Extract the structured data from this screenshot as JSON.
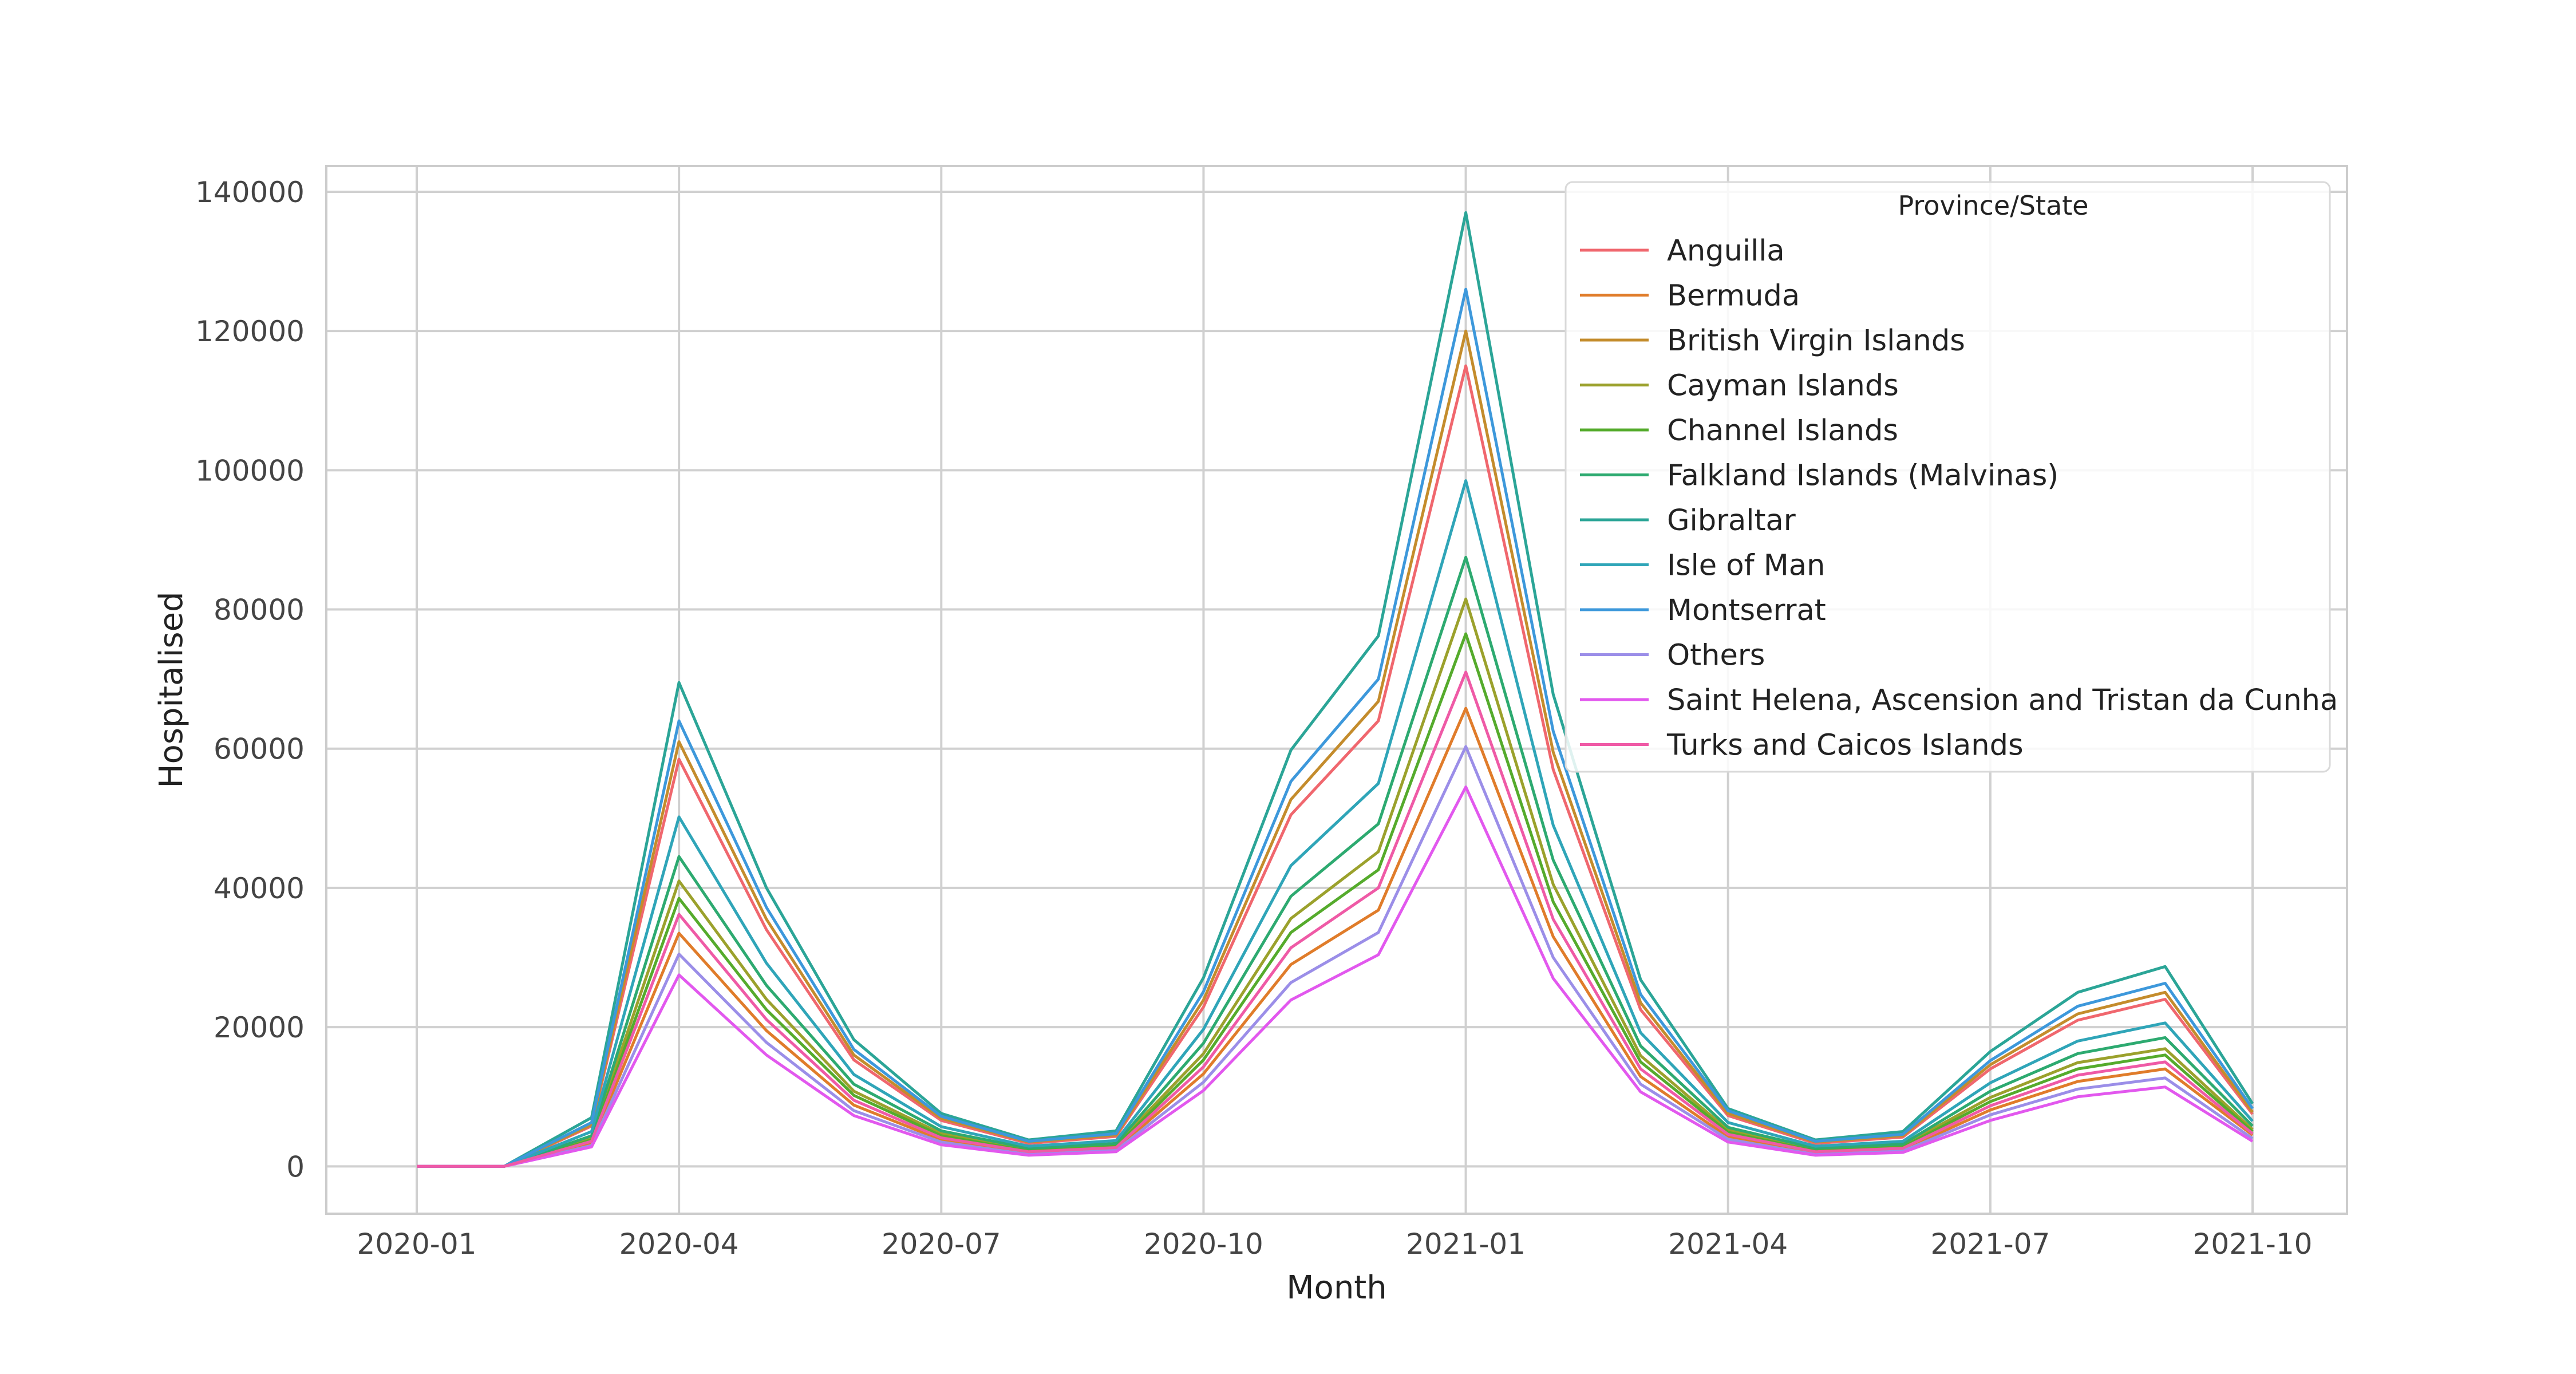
{
  "chart_data": {
    "type": "line",
    "title": "",
    "xlabel": "Month",
    "ylabel": "Hospitalised",
    "x": [
      "2020-01",
      "2020-02",
      "2020-03",
      "2020-04",
      "2020-05",
      "2020-06",
      "2020-07",
      "2020-08",
      "2020-09",
      "2020-10",
      "2020-11",
      "2020-12",
      "2021-01",
      "2021-02",
      "2021-03",
      "2021-04",
      "2021-05",
      "2021-06",
      "2021-07",
      "2021-08",
      "2021-09",
      "2021-10"
    ],
    "x_ticks": [
      "2020-01",
      "2020-04",
      "2020-07",
      "2020-10",
      "2021-01",
      "2021-04",
      "2021-07",
      "2021-10"
    ],
    "y_ticks": [
      0,
      20000,
      40000,
      60000,
      80000,
      100000,
      120000,
      140000
    ],
    "y_tick_labels": [
      "0",
      "20000",
      "40000",
      "60000",
      "80000",
      "100000",
      "120000",
      "140000"
    ],
    "ylim": [
      -6800,
      143700
    ],
    "grid": true,
    "legend_title": "Province/State",
    "legend_position": "top-right",
    "series": [
      {
        "name": "Anguilla",
        "color": "#f0676e",
        "values": [
          0,
          0,
          5800,
          58500,
          34000,
          15300,
          6600,
          3300,
          4300,
          22900,
          50500,
          64000,
          115000,
          57000,
          22500,
          7300,
          3300,
          4200,
          14000,
          21000,
          24000,
          7500
        ]
      },
      {
        "name": "Bermuda",
        "color": "#e07c2a",
        "values": [
          0,
          0,
          3300,
          33500,
          19500,
          8800,
          3800,
          1900,
          2500,
          13300,
          29000,
          36800,
          65800,
          33000,
          12900,
          4200,
          1900,
          2400,
          8100,
          12200,
          14000,
          4500
        ]
      },
      {
        "name": "British Virgin Islands",
        "color": "#c48c2c",
        "values": [
          0,
          0,
          6000,
          61000,
          35500,
          16000,
          6900,
          3500,
          4500,
          23900,
          52700,
          66800,
          120000,
          59500,
          23500,
          7600,
          3500,
          4400,
          14600,
          21900,
          25000,
          7800
        ]
      },
      {
        "name": "Cayman Islands",
        "color": "#9ba12c",
        "values": [
          0,
          0,
          4100,
          41000,
          24000,
          10800,
          4700,
          2300,
          3100,
          16200,
          35600,
          45200,
          81500,
          40500,
          15900,
          5200,
          2300,
          3000,
          9900,
          14900,
          16900,
          5300
        ]
      },
      {
        "name": "Channel Islands",
        "color": "#55ab2c",
        "values": [
          0,
          0,
          3800,
          38500,
          22500,
          10200,
          4400,
          2200,
          2900,
          15300,
          33600,
          42600,
          76500,
          38000,
          15000,
          4900,
          2200,
          2800,
          9300,
          14000,
          16000,
          5000
        ]
      },
      {
        "name": "Falkland Islands (Malvinas)",
        "color": "#2daa70",
        "values": [
          0,
          0,
          4400,
          44500,
          26000,
          11800,
          5100,
          2600,
          3300,
          17700,
          38800,
          49200,
          87500,
          44000,
          17300,
          5600,
          2600,
          3200,
          10800,
          16200,
          18500,
          5800
        ]
      },
      {
        "name": "Gibraltar",
        "color": "#2ba597",
        "values": [
          0,
          0,
          7000,
          69500,
          40000,
          18200,
          7600,
          3800,
          5100,
          27100,
          59800,
          76200,
          137000,
          67800,
          26800,
          8300,
          3800,
          5000,
          16500,
          25000,
          28700,
          9000
        ]
      },
      {
        "name": "Isle of Man",
        "color": "#2fa5b8",
        "values": [
          0,
          0,
          5000,
          50200,
          29200,
          13200,
          5700,
          2900,
          3700,
          19700,
          43200,
          55000,
          98500,
          49000,
          19200,
          6300,
          2900,
          3600,
          12000,
          18000,
          20600,
          6500
        ]
      },
      {
        "name": "Montserrat",
        "color": "#3d98db",
        "values": [
          0,
          0,
          6300,
          64000,
          37200,
          16800,
          7200,
          3600,
          4700,
          25100,
          55300,
          70000,
          126000,
          62500,
          24700,
          8000,
          3600,
          4600,
          15200,
          23000,
          26300,
          8300
        ]
      },
      {
        "name": "Others",
        "color": "#9b8ee8",
        "values": [
          0,
          0,
          3000,
          30500,
          17800,
          8000,
          3500,
          1700,
          2300,
          12100,
          26400,
          33600,
          60300,
          30000,
          11800,
          3900,
          1700,
          2200,
          7400,
          11100,
          12700,
          4000
        ]
      },
      {
        "name": "Saint Helena, Ascension and Tristan da Cunha",
        "color": "#e258ee",
        "values": [
          0,
          0,
          2800,
          27500,
          16000,
          7300,
          3100,
          1600,
          2100,
          10900,
          23900,
          30400,
          54500,
          27000,
          10700,
          3500,
          1600,
          2000,
          6600,
          10000,
          11400,
          3600
        ]
      },
      {
        "name": "Turks and Caicos Islands",
        "color": "#ef5aa6",
        "values": [
          0,
          0,
          3600,
          36200,
          21100,
          9500,
          4100,
          2100,
          2700,
          14300,
          31400,
          40000,
          71000,
          35500,
          14000,
          4600,
          2100,
          2600,
          8700,
          13100,
          15000,
          4700
        ]
      }
    ]
  }
}
